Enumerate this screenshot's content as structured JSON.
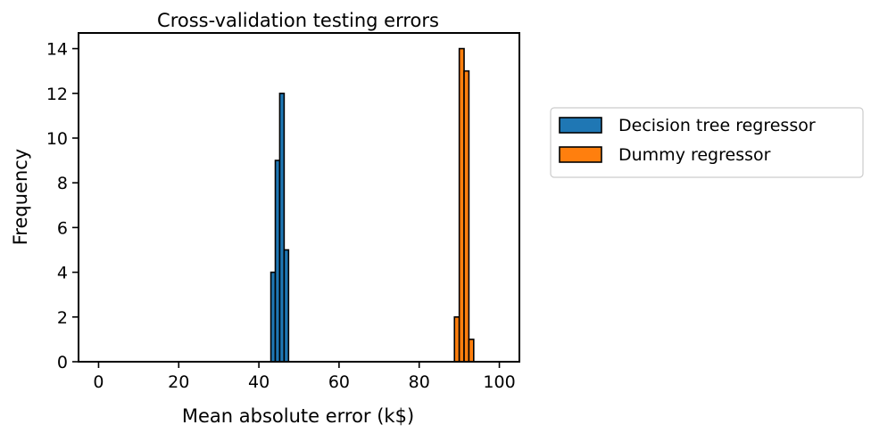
{
  "chart_data": {
    "type": "bar",
    "title": "Cross-validation testing errors",
    "xlabel": "Mean absolute error (k$)",
    "ylabel": "Frequency",
    "xlim": [
      -5,
      105
    ],
    "ylim": [
      0,
      14.7
    ],
    "xticks": [
      0,
      20,
      40,
      60,
      80,
      100
    ],
    "yticks": [
      0,
      2,
      4,
      6,
      8,
      10,
      12,
      14
    ],
    "grid": false,
    "legend_position": "outside-right",
    "series": [
      {
        "name": "Decision tree regressor",
        "color": "#1f77b4",
        "bins": [
          {
            "x0": 43.0,
            "x1": 44.1,
            "value": 4
          },
          {
            "x0": 44.1,
            "x1": 45.2,
            "value": 9
          },
          {
            "x0": 45.2,
            "x1": 46.3,
            "value": 12
          },
          {
            "x0": 46.3,
            "x1": 47.4,
            "value": 5
          }
        ]
      },
      {
        "name": "Dummy regressor",
        "color": "#ff7f0e",
        "bins": [
          {
            "x0": 88.8,
            "x1": 90.0,
            "value": 2
          },
          {
            "x0": 90.0,
            "x1": 91.2,
            "value": 14
          },
          {
            "x0": 91.2,
            "x1": 92.4,
            "value": 13
          },
          {
            "x0": 92.4,
            "x1": 93.6,
            "value": 1
          }
        ]
      }
    ]
  }
}
